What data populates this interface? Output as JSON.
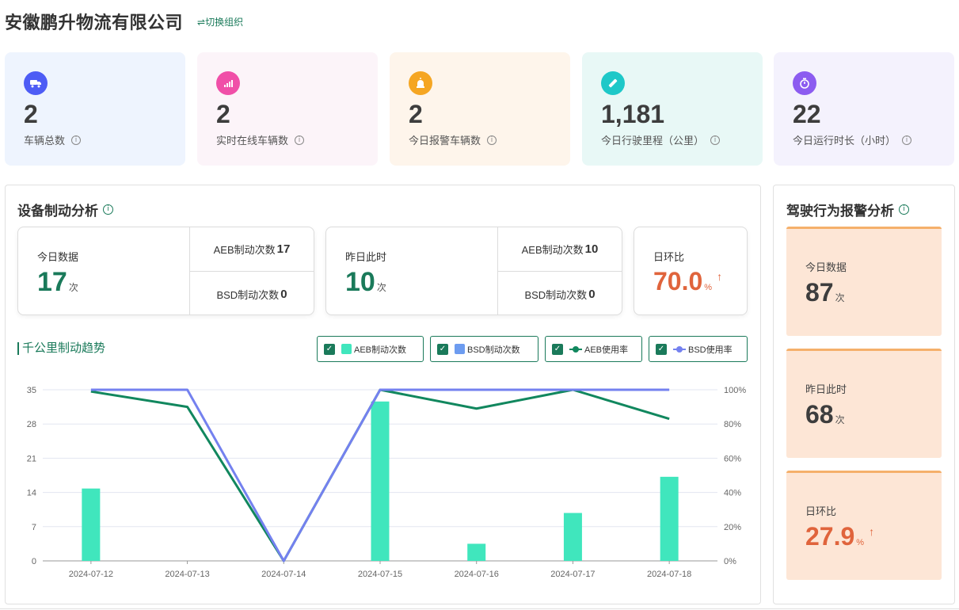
{
  "header": {
    "company": "安徽鹏升物流有限公司",
    "switch_org": "⇌切换组织"
  },
  "stats": [
    {
      "value": "2",
      "label": "车辆总数",
      "icon": "truck-icon",
      "bg": "#eef4fe",
      "color": "#4d5cf5"
    },
    {
      "value": "2",
      "label": "实时在线车辆数",
      "icon": "signal-icon",
      "bg": "#fcf4f9",
      "color": "#f04fa8"
    },
    {
      "value": "2",
      "label": "今日报警车辆数",
      "icon": "alarm-icon",
      "bg": "#fef5eb",
      "color": "#f5a623"
    },
    {
      "value": "1,181",
      "label": "今日行驶里程（公里）",
      "icon": "ruler-icon",
      "bg": "#e8f8f6",
      "color": "#1ec8c8"
    },
    {
      "value": "22",
      "label": "今日运行时长（小时）",
      "icon": "timer-icon",
      "bg": "#f4f2fd",
      "color": "#8c5cf0"
    }
  ],
  "brake": {
    "title": "设备制动分析",
    "today": {
      "label": "今日数据",
      "value": "17",
      "unit": "次",
      "aeb_label": "AEB制动次数",
      "aeb": "17",
      "bsd_label": "BSD制动次数",
      "bsd": "0"
    },
    "yesterday": {
      "label": "昨日此时",
      "value": "10",
      "unit": "次",
      "aeb_label": "AEB制动次数",
      "aeb": "10",
      "bsd_label": "BSD制动次数",
      "bsd": "0"
    },
    "ratio": {
      "label": "日环比",
      "value": "70.0",
      "unit": "%",
      "arrow": "↑"
    },
    "chart_title": "千公里制动趋势",
    "legend": [
      "AEB制动次数",
      "BSD制动次数",
      "AEB使用率",
      "BSD使用率"
    ]
  },
  "alarm": {
    "title": "驾驶行为报警分析",
    "today": {
      "label": "今日数据",
      "value": "87",
      "unit": "次"
    },
    "yesterday": {
      "label": "昨日此时",
      "value": "68",
      "unit": "次"
    },
    "ratio": {
      "label": "日环比",
      "value": "27.9",
      "unit": "%",
      "arrow": "↑"
    }
  },
  "colors": {
    "accent": "#1a7a5a",
    "aeb_bar": "#40e6bd",
    "bsd_bar": "#6d9cf0",
    "aeb_line": "#11875e",
    "bsd_line": "#7481ef",
    "up": "#e0643c"
  },
  "chart_data": {
    "type": "bar",
    "categories": [
      "2024-07-12",
      "2024-07-13",
      "2024-07-14",
      "2024-07-15",
      "2024-07-16",
      "2024-07-17",
      "2024-07-18"
    ],
    "series": [
      {
        "name": "AEB制动次数",
        "type": "bar",
        "axis": "left",
        "values": [
          14.8,
          0,
          0,
          32.6,
          3.5,
          9.8,
          17.2
        ]
      },
      {
        "name": "BSD制动次数",
        "type": "bar",
        "axis": "left",
        "values": [
          0,
          0,
          0,
          0,
          0,
          0,
          0
        ]
      },
      {
        "name": "AEB使用率",
        "type": "line",
        "axis": "right",
        "values": [
          99,
          90,
          0,
          100,
          89,
          100,
          83
        ]
      },
      {
        "name": "BSD使用率",
        "type": "line",
        "axis": "right",
        "values": [
          100,
          100,
          0,
          100,
          100,
          100,
          100
        ]
      }
    ],
    "yleft_ticks": [
      0,
      7,
      14,
      21,
      28,
      35
    ],
    "yright_ticks": [
      "0%",
      "20%",
      "40%",
      "60%",
      "80%",
      "100%"
    ],
    "ylim_left": [
      0,
      35
    ],
    "ylim_right": [
      0,
      100
    ],
    "grid": true
  }
}
